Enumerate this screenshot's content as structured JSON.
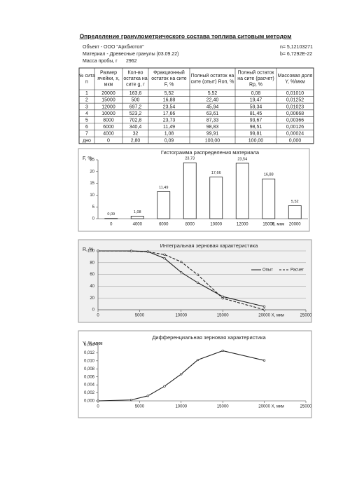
{
  "header": {
    "title": "Определение гранулометрического состава топлива ситовым методом",
    "object": "Объект - ООО \"Архбиотоп\"",
    "n": "n= 5,12103271",
    "material": "Материал - Древесные гранулы (03.09.22)",
    "b": "b= 6,7292E-22",
    "mass_label": "Масса пробы, г",
    "mass": "2962"
  },
  "table": {
    "columns": [
      "№ сита n",
      "Размер ячейки, x, мкм",
      "Кол-во остатка на сите g, г",
      "Фракционный остаток на сите F, %",
      "Полный остаток на сите (опыт) Rоп, %",
      "Полный остаток на сите (расчет) Rр, %",
      "Массовая доля Y, %/мкм"
    ],
    "rows": [
      [
        "1",
        "20000",
        "163,6",
        "5,52",
        "5,52",
        "0,08",
        "0,01010"
      ],
      [
        "2",
        "15000",
        "500",
        "16,88",
        "22,40",
        "19,47",
        "0,01252"
      ],
      [
        "3",
        "12000",
        "697,2",
        "23,54",
        "45,94",
        "59,34",
        "0,01023"
      ],
      [
        "4",
        "10000",
        "523,2",
        "17,66",
        "63,61",
        "81,45",
        "0,00668"
      ],
      [
        "5",
        "8000",
        "702,8",
        "23,73",
        "87,33",
        "93,67",
        "0,00366"
      ],
      [
        "6",
        "6000",
        "340,4",
        "11,49",
        "98,83",
        "98,51",
        "0,00126"
      ],
      [
        "7",
        "4000",
        "32",
        "1,08",
        "99,91",
        "99,81",
        "0,00024"
      ],
      [
        "дно",
        "0",
        "2,80",
        "0,09",
        "100,00",
        "100,00",
        "0,000"
      ]
    ]
  },
  "chart_data": [
    {
      "type": "bar",
      "title": "Гистограмма распределения материала",
      "y_label": "F, %",
      "x_label": "X, мкм",
      "categories": [
        "0",
        "4000",
        "6000",
        "8000",
        "10000",
        "12000",
        "15000",
        "20000"
      ],
      "values": [
        0.09,
        1.08,
        11.49,
        23.73,
        17.66,
        23.54,
        16.88,
        5.52
      ],
      "value_labels": [
        "0,09",
        "1,08",
        "11,49",
        "23,73",
        "17,66",
        "23,54",
        "16,88",
        "5,52"
      ],
      "color": "#ffffff",
      "ylim": [
        0,
        25
      ],
      "yticks": [
        0,
        5,
        10,
        15,
        20,
        25
      ],
      "grid": false
    },
    {
      "type": "line",
      "title": "Интегральная зерновая характеристика",
      "y_label": "R, %",
      "x_label": "X, мкм",
      "x": [
        0,
        4000,
        6000,
        8000,
        10000,
        12000,
        15000,
        20000
      ],
      "series": [
        {
          "name": "Опыт",
          "color": "#222222",
          "line_style": "solid",
          "values": [
            100,
            99.91,
            98.83,
            87.33,
            63.61,
            45.94,
            22.4,
            5.52
          ]
        },
        {
          "name": "Расчет",
          "color": "#222222",
          "line_style": "dashed",
          "values": [
            100,
            99.81,
            98.51,
            93.67,
            81.45,
            59.34,
            19.47,
            0.08
          ]
        }
      ],
      "xlim": [
        0,
        25000
      ],
      "xticks": [
        0,
        5000,
        10000,
        15000,
        20000,
        25000
      ],
      "ylim": [
        0,
        100
      ],
      "yticks": [
        0,
        20,
        40,
        60,
        80,
        100
      ],
      "grid": true,
      "legend": "right"
    },
    {
      "type": "line",
      "title": "Дифференциальная зерновая характеристика",
      "y_label": "Y, % мкм",
      "x_label": "X, мкм",
      "x": [
        0,
        4000,
        6000,
        8000,
        10000,
        12000,
        15000,
        20000
      ],
      "series": [
        {
          "color": "#222222",
          "line_style": "solid",
          "values": [
            0,
            0.00024,
            0.00126,
            0.00366,
            0.00668,
            0.01023,
            0.01252,
            0.0101
          ]
        }
      ],
      "xlim": [
        0,
        25000
      ],
      "xticks": [
        0,
        5000,
        10000,
        15000,
        20000,
        25000
      ],
      "ylim": [
        0,
        0.014
      ],
      "yticks": [
        {
          "value": 0,
          "label": "0,000"
        },
        {
          "value": 0.002,
          "label": "0,002"
        },
        {
          "value": 0.004,
          "label": "0,004"
        },
        {
          "value": 0.006,
          "label": "0,006"
        },
        {
          "value": 0.008,
          "label": "0,008"
        },
        {
          "value": 0.01,
          "label": "0,010"
        },
        {
          "value": 0.012,
          "label": "0,012"
        },
        {
          "value": 0.014,
          "label": "0,014"
        }
      ],
      "grid": false
    }
  ]
}
